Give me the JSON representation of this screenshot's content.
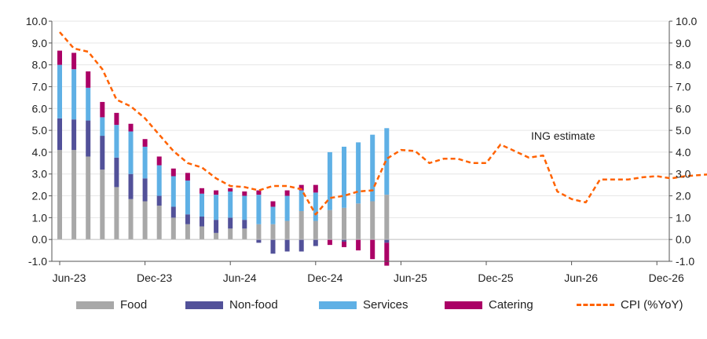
{
  "chart_data": {
    "type": "bar",
    "stacked": true,
    "ylim": [
      -1,
      10
    ],
    "yticks": [
      "-1.0",
      "0.0",
      "1.0",
      "2.0",
      "3.0",
      "4.0",
      "5.0",
      "6.0",
      "7.0",
      "8.0",
      "9.0",
      "10.0"
    ],
    "xticks": [
      "Jun-23",
      "Dec-23",
      "Jun-24",
      "Dec-24",
      "Jun-25",
      "Dec-25",
      "Jun-26",
      "Dec-26"
    ],
    "annotation": "ING estimate",
    "series": [
      {
        "name": "Food",
        "color": "#a8a8a8",
        "values": [
          4.1,
          4.1,
          3.8,
          3.2,
          2.4,
          1.85,
          1.75,
          1.55,
          1.0,
          0.7,
          0.6,
          0.3,
          0.5,
          0.5,
          0.7,
          0.7,
          0.85,
          1.3,
          0.85,
          1.35,
          1.45,
          1.65,
          1.75,
          2.05
        ]
      },
      {
        "name": "Non-food",
        "color": "#525199",
        "values": [
          1.45,
          1.4,
          1.65,
          1.55,
          1.35,
          1.15,
          1.05,
          0.45,
          0.5,
          0.45,
          0.45,
          0.6,
          0.5,
          0.4,
          -0.15,
          -0.65,
          -0.55,
          -0.55,
          -0.3,
          0.0,
          -0.1,
          0.0,
          0.0,
          -0.15
        ]
      },
      {
        "name": "Services",
        "color": "#5fb0e5",
        "values": [
          2.45,
          2.3,
          1.5,
          0.85,
          1.5,
          1.95,
          1.45,
          1.4,
          1.4,
          1.55,
          1.05,
          1.15,
          1.2,
          1.1,
          1.35,
          0.8,
          1.15,
          0.95,
          1.3,
          2.65,
          2.8,
          2.8,
          3.05,
          3.05
        ]
      },
      {
        "name": "Catering",
        "color": "#ab0066",
        "values": [
          0.65,
          0.75,
          0.75,
          0.7,
          0.55,
          0.35,
          0.35,
          0.4,
          0.35,
          0.35,
          0.25,
          0.2,
          0.15,
          0.2,
          0.2,
          0.25,
          0.25,
          0.25,
          0.35,
          -0.25,
          -0.25,
          -0.5,
          -0.9,
          -1.05
        ]
      }
    ],
    "line": {
      "name": "CPI (%YoY)",
      "color": "#ff6200",
      "style": "dashed",
      "values": [
        9.5,
        8.75,
        8.6,
        7.8,
        6.4,
        6.1,
        5.55,
        4.8,
        4.05,
        3.5,
        3.3,
        2.8,
        2.45,
        2.4,
        2.25,
        2.45,
        2.45,
        2.3,
        1.15,
        1.9,
        2.0,
        2.2,
        2.25,
        3.7,
        4.1,
        4.05,
        3.5,
        3.7,
        3.7,
        3.5,
        3.5,
        4.35,
        4.05,
        3.75,
        3.85,
        2.2,
        1.85,
        1.7,
        2.75,
        2.75,
        2.75,
        2.85,
        2.9,
        2.8,
        2.9,
        2.95,
        3.0
      ]
    },
    "legend": [
      "Food",
      "Non-food",
      "Services",
      "Catering",
      "CPI (%YoY)"
    ]
  }
}
